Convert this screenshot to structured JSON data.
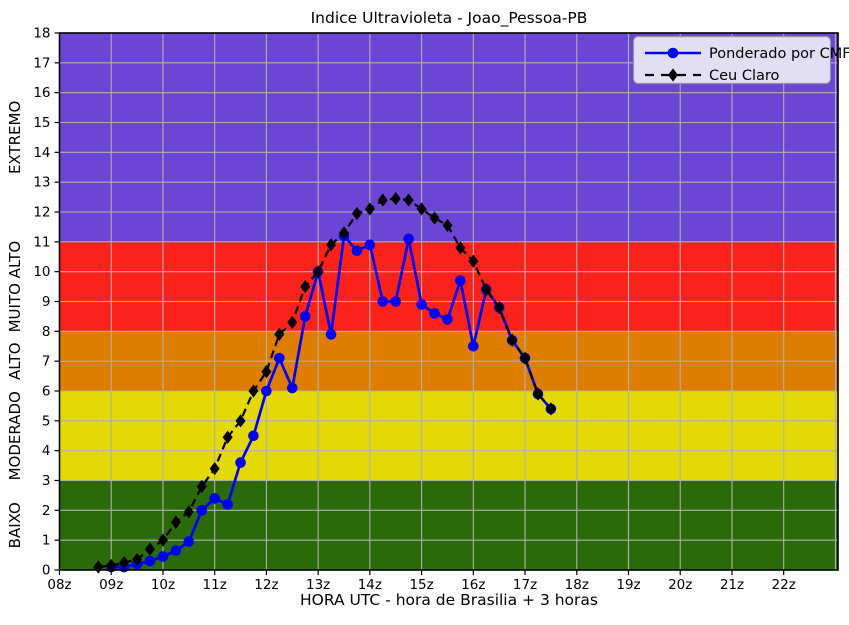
{
  "chart_data": {
    "type": "line",
    "title": "Indice Ultravioleta - Joao_Pessoa-PB",
    "xlabel": "HORA UTC - hora de Brasilia + 3 horas",
    "ylabel": "",
    "xlim_hours": [
      8.0,
      23.05
    ],
    "ylim": [
      0,
      18
    ],
    "grid": true,
    "legend_position": "upper right",
    "x_unit": "UTC hour (z)",
    "interval_minutes": 15,
    "xticks": [
      "08z",
      "09z",
      "10z",
      "11z",
      "12z",
      "13z",
      "14z",
      "15z",
      "16z",
      "17z",
      "18z",
      "19z",
      "20z",
      "21z",
      "22z"
    ],
    "yticks": [
      0,
      1,
      2,
      3,
      4,
      5,
      6,
      7,
      8,
      9,
      10,
      11,
      12,
      13,
      14,
      15,
      16,
      17,
      18
    ],
    "grid_color": "#b0b0b0",
    "bands": [
      {
        "label": "BAIXO",
        "range": [
          0,
          3
        ],
        "color": "#2a6a08",
        "label_color": "#228b22"
      },
      {
        "label": "MODERADO",
        "range": [
          3,
          6
        ],
        "color": "#e2d906",
        "label_color": "#c6c400"
      },
      {
        "label": "ALTO",
        "range": [
          6,
          8
        ],
        "color": "#dd7e02",
        "label_color": "#ffa500"
      },
      {
        "label": "MUITO ALTO",
        "range": [
          8,
          11
        ],
        "color": "#fc221c",
        "label_color": "#ff0000"
      },
      {
        "label": "EXTREMO",
        "range": [
          11,
          18
        ],
        "color": "#6b46d5",
        "label_color": "#0000ff"
      }
    ],
    "series": [
      {
        "name": "Ponderado por CMF",
        "color": "#0000f0",
        "marker": "circle",
        "line_style": "solid",
        "x_hours": [
          9.0,
          9.25,
          9.5,
          9.75,
          10.0,
          10.25,
          10.5,
          10.75,
          11.0,
          11.25,
          11.5,
          11.75,
          12.0,
          12.25,
          12.5,
          12.75,
          13.0,
          13.25,
          13.5,
          13.75,
          14.0,
          14.25,
          14.5,
          14.75,
          15.0,
          15.25,
          15.5,
          15.75,
          16.0,
          16.25,
          16.5,
          16.75,
          17.0,
          17.25,
          17.5
        ],
        "y": [
          0.1,
          0.1,
          0.2,
          0.3,
          0.45,
          0.65,
          0.95,
          2.0,
          2.4,
          2.2,
          3.6,
          4.5,
          6.0,
          7.1,
          6.1,
          8.5,
          10.0,
          7.9,
          11.2,
          10.7,
          10.9,
          9.0,
          9.0,
          11.1,
          8.9,
          8.6,
          8.4,
          9.7,
          7.5,
          9.4,
          8.8,
          7.7,
          7.1,
          5.9,
          5.4
        ]
      },
      {
        "name": "Ceu Claro",
        "color": "#000000",
        "marker": "diamond",
        "line_style": "dashed",
        "x_hours": [
          8.75,
          9.0,
          9.25,
          9.5,
          9.75,
          10.0,
          10.25,
          10.5,
          10.75,
          11.0,
          11.25,
          11.5,
          11.75,
          12.0,
          12.25,
          12.5,
          12.75,
          13.0,
          13.25,
          13.5,
          13.75,
          14.0,
          14.25,
          14.5,
          14.75,
          15.0,
          15.25,
          15.5,
          15.75,
          16.0,
          16.25,
          16.5,
          16.75,
          17.0,
          17.25,
          17.5
        ],
        "y": [
          0.1,
          0.15,
          0.25,
          0.35,
          0.7,
          1.0,
          1.6,
          1.95,
          2.8,
          3.4,
          4.45,
          5.0,
          6.0,
          6.65,
          7.9,
          8.3,
          9.5,
          10.0,
          10.9,
          11.3,
          11.95,
          12.1,
          12.4,
          12.45,
          12.4,
          12.1,
          11.8,
          11.55,
          10.8,
          10.35,
          9.4,
          8.8,
          7.7,
          7.1,
          5.9,
          5.4
        ]
      }
    ]
  },
  "legend": {
    "items": [
      {
        "label": "Ponderado por CMF"
      },
      {
        "label": "Ceu Claro"
      }
    ]
  }
}
